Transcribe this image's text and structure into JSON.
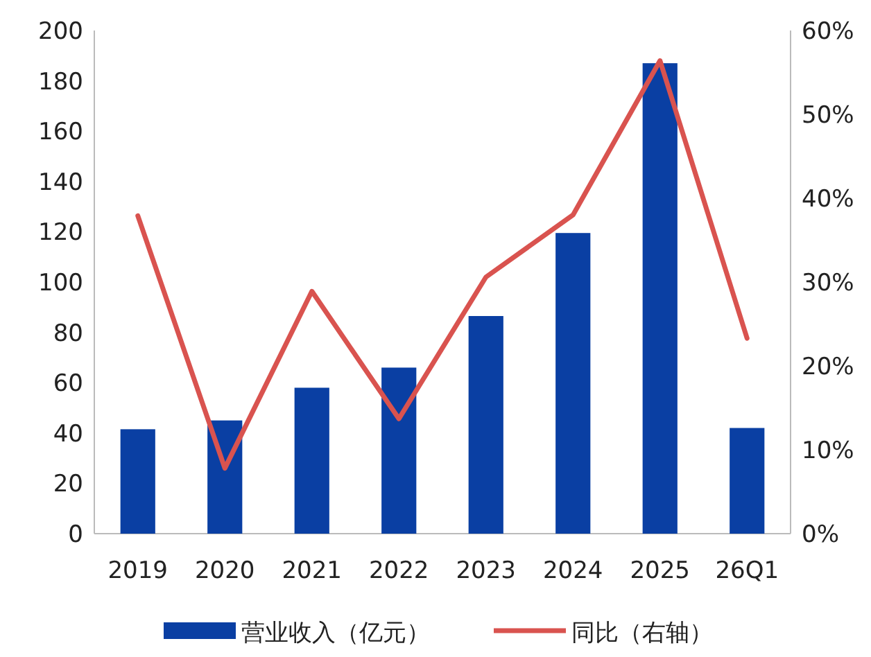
{
  "chart_data": {
    "type": "bar",
    "categories": [
      "2019",
      "2020",
      "2021",
      "2022",
      "2023",
      "2024",
      "2025",
      "26Q1"
    ],
    "series": [
      {
        "name": "营业收入（亿元）",
        "color": "#0a3fa3",
        "values": [
          41.5,
          45,
          58,
          66,
          86.5,
          119.5,
          187,
          42
        ]
      },
      {
        "name": "同比（右轴）",
        "type": "line",
        "axis": "y2",
        "color": "#d9534f",
        "values": [
          37.9,
          7.8,
          28.9,
          13.7,
          30.6,
          38,
          56.4,
          23.3
        ]
      }
    ],
    "ylim": [
      0,
      200
    ],
    "yticks": [
      0,
      20,
      40,
      60,
      80,
      100,
      120,
      140,
      160,
      180,
      200
    ],
    "y2lim": [
      0,
      60
    ],
    "y2ticks": [
      {
        "value": 0,
        "label": "0%"
      },
      {
        "value": 10,
        "label": "10%"
      },
      {
        "value": 20,
        "label": "20%"
      },
      {
        "value": 30,
        "label": "30%"
      },
      {
        "value": 40,
        "label": "40%"
      },
      {
        "value": 50,
        "label": "50%"
      },
      {
        "value": 60,
        "label": "60%"
      }
    ],
    "grid": false,
    "legend": "bottom",
    "marker": "none",
    "line_style": "solid"
  }
}
